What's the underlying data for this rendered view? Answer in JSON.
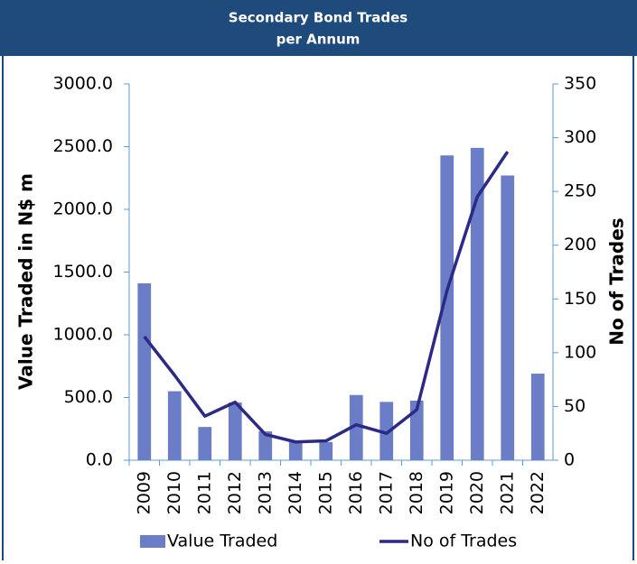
{
  "chart_data": {
    "type": "bar-line",
    "title": "Secondary Bond Trades",
    "subtitle": "per Annum",
    "y_label": "Value Traded in N$ m",
    "y2_label": "No of Trades",
    "categories": [
      "2009",
      "2010",
      "2011",
      "2012",
      "2013",
      "2014",
      "2015",
      "2016",
      "2017",
      "2018",
      "2019",
      "2020",
      "2021",
      "2022"
    ],
    "series": [
      {
        "name": "Value Traded",
        "type": "bar",
        "color": "#6a7dc6",
        "values": [
          1410,
          550,
          265,
          460,
          230,
          145,
          145,
          520,
          465,
          475,
          2430,
          2490,
          2270,
          690
        ]
      },
      {
        "name": "No of Trades",
        "type": "line",
        "axis": "y2",
        "color": "#2b2a86",
        "values": [
          115,
          79,
          41,
          54,
          24,
          17,
          18,
          33,
          25,
          47,
          158,
          245,
          287,
          null
        ]
      }
    ],
    "ylim": [
      0,
      3000
    ],
    "yticks": [
      {
        "value": 0,
        "label": "0.0"
      },
      {
        "value": 500,
        "label": "500.0"
      },
      {
        "value": 1000,
        "label": "1000.0"
      },
      {
        "value": 1500,
        "label": "1500.0"
      },
      {
        "value": 2000,
        "label": "2000.0"
      },
      {
        "value": 2500,
        "label": "2500.0"
      },
      {
        "value": 3000,
        "label": "3000.0"
      }
    ],
    "y2lim": [
      0,
      350
    ],
    "y2ticks": [
      0,
      50,
      100,
      150,
      200,
      250,
      300,
      350
    ]
  }
}
